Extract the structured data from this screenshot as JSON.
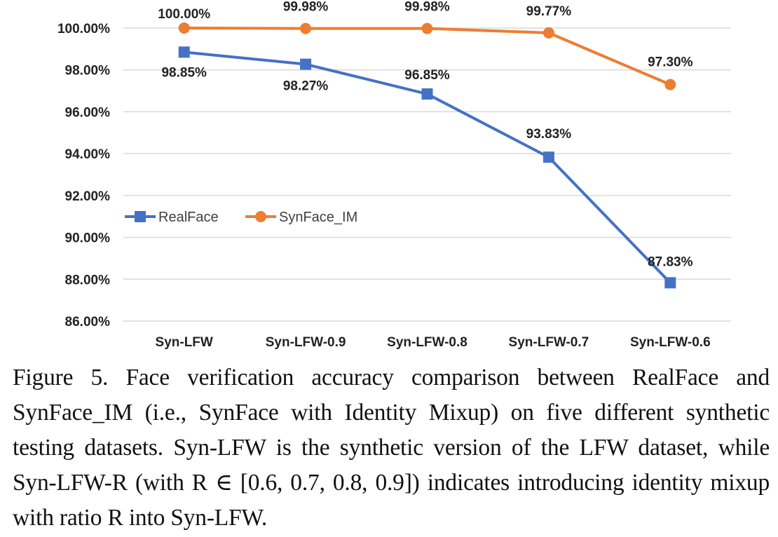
{
  "chart_data": {
    "type": "line",
    "categories": [
      "Syn-LFW",
      "Syn-LFW-0.9",
      "Syn-LFW-0.8",
      "Syn-LFW-0.7",
      "Syn-LFW-0.6"
    ],
    "series": [
      {
        "name": "RealFace",
        "color": "#4472c4",
        "marker": "square",
        "values": [
          98.85,
          98.27,
          96.85,
          93.83,
          87.83
        ],
        "labels": [
          "98.85%",
          "98.27%",
          "96.85%",
          "93.83%",
          "87.83%"
        ]
      },
      {
        "name": "SynFace_IM",
        "color": "#ed7d31",
        "marker": "circle",
        "values": [
          100.0,
          99.98,
          99.98,
          99.77,
          97.3
        ],
        "labels": [
          "100.00%",
          "99.98%",
          "99.98%",
          "99.77%",
          "97.30%"
        ]
      }
    ],
    "y_ticks": [
      "100.00%",
      "98.00%",
      "96.00%",
      "94.00%",
      "92.00%",
      "90.00%",
      "88.00%",
      "86.00%"
    ],
    "y_tick_values": [
      100,
      98,
      96,
      94,
      92,
      90,
      88,
      86
    ],
    "ylim": [
      86,
      100
    ],
    "grid": true,
    "legend_position": "center-left",
    "title": "",
    "xlabel": "",
    "ylabel": ""
  },
  "caption": {
    "text": "Figure 5. Face verification accuracy comparison between RealFace and SynFace_IM (i.e., SynFace with Identity Mixup) on five different synthetic testing datasets. Syn-LFW is the synthetic version of the LFW dataset, while Syn-LFW-R (with R ∈ [0.6, 0.7, 0.8, 0.9]) indicates introducing identity mixup with ratio R into Syn-LFW."
  }
}
